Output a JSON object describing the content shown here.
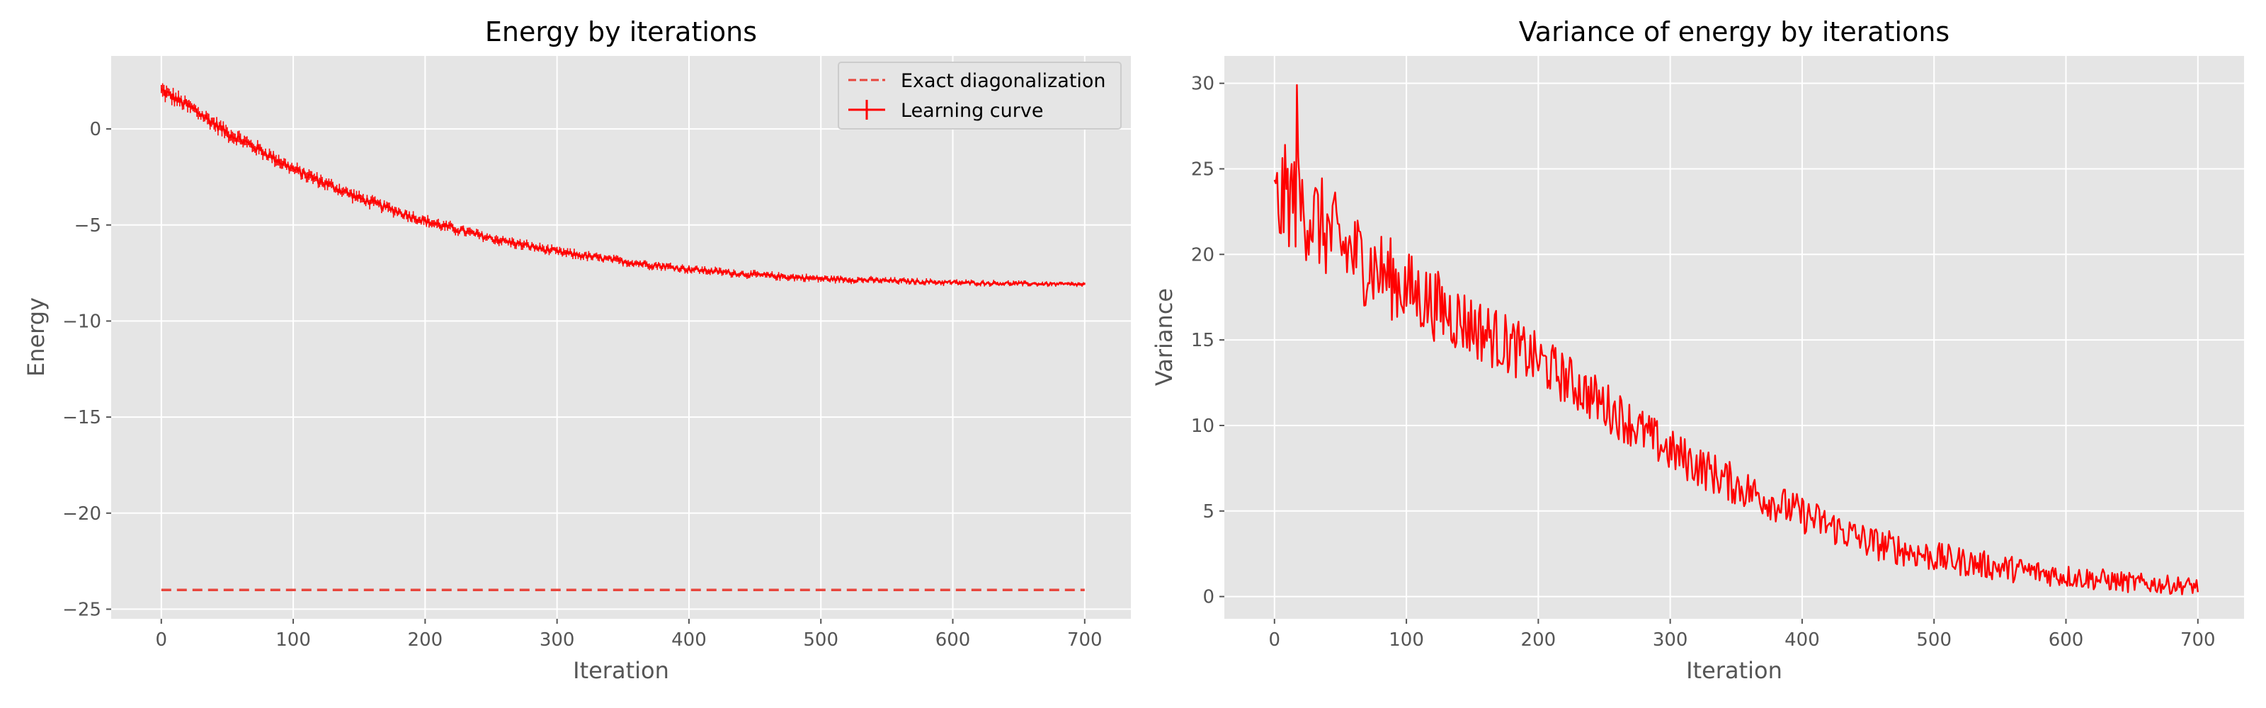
{
  "chart_data": [
    {
      "type": "line",
      "title": "Energy by iterations",
      "xlabel": "Iteration",
      "ylabel": "Energy",
      "xlim": [
        -38,
        735
      ],
      "ylim": [
        -25.5,
        3.8
      ],
      "xticks": [
        0,
        100,
        200,
        300,
        400,
        500,
        600,
        700
      ],
      "yticks": [
        0,
        -5,
        -10,
        -15,
        -20,
        -25
      ],
      "grid": true,
      "legend": "top-right",
      "series": [
        {
          "name": "Learning curve",
          "color": "#ff0000",
          "style": "solid-with-errorbars",
          "x_range": [
            0,
            700
          ],
          "trend": {
            "x": [
              0,
              25,
              50,
              75,
              100,
              150,
              200,
              250,
              300,
              350,
              400,
              450,
              500,
              550,
              600,
              650,
              700
            ],
            "y": [
              2.0,
              1.0,
              -0.2,
              -1.1,
              -2.1,
              -3.6,
              -4.8,
              -5.7,
              -6.4,
              -6.9,
              -7.3,
              -7.6,
              -7.8,
              -7.9,
              -8.0,
              -8.05,
              -8.1
            ]
          },
          "noise": {
            "x": [
              0,
              100,
              300,
              700
            ],
            "amplitude": [
              0.25,
              0.2,
              0.14,
              0.07
            ]
          }
        },
        {
          "name": "Exact diagonalization",
          "color": "#e8453c",
          "style": "dashed",
          "x": [
            0,
            700
          ],
          "y": [
            -24.0,
            -24.0
          ]
        }
      ]
    },
    {
      "type": "line",
      "title": "Variance of energy by iterations",
      "xlabel": "Iteration",
      "ylabel": "Variance",
      "xlim": [
        -38,
        735
      ],
      "ylim": [
        -1.3,
        31.6
      ],
      "xticks": [
        0,
        100,
        200,
        300,
        400,
        500,
        600,
        700
      ],
      "yticks": [
        0,
        5,
        10,
        15,
        20,
        25,
        30
      ],
      "grid": true,
      "legend": "none",
      "series": [
        {
          "color": "#ff0000",
          "style": "solid",
          "x_range": [
            0,
            700
          ],
          "trend": {
            "x": [
              0,
              10,
              25,
              50,
              100,
              150,
              200,
              250,
              300,
              350,
              400,
              450,
              500,
              550,
              600,
              650,
              700
            ],
            "y": [
              22.5,
              23.5,
              22.5,
              20.5,
              18.0,
              15.8,
              13.8,
              11.2,
              8.5,
              6.5,
              4.8,
              3.2,
              2.3,
              1.7,
              1.2,
              0.8,
              0.6
            ]
          },
          "noise": {
            "x": [
              0,
              50,
              100,
              200,
              300,
              450,
              600,
              700
            ],
            "amplitude": [
              3.2,
              2.8,
              2.3,
              1.6,
              1.3,
              1.0,
              0.7,
              0.5
            ]
          },
          "peak": {
            "x": 17,
            "y": 29.9
          }
        }
      ]
    }
  ]
}
